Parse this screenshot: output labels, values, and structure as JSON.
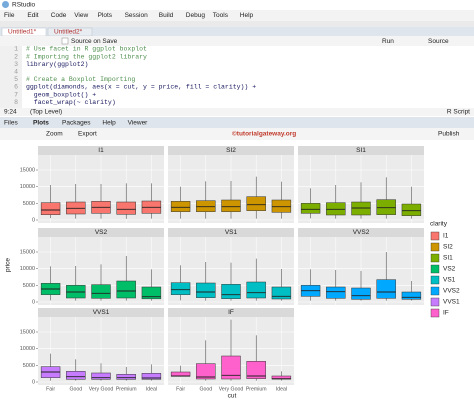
{
  "window_title": "RStudio",
  "menu": [
    "File",
    "Edit",
    "Code",
    "View",
    "Plots",
    "Session",
    "Build",
    "Debug",
    "Tools",
    "Help"
  ],
  "editor": {
    "tabs": [
      "Untitled1*",
      "Untitled2*"
    ],
    "source_on_save": "Source on Save",
    "run": "Run",
    "source": "Source",
    "line_numbers": [
      1,
      2,
      3,
      4,
      5,
      6,
      7,
      8
    ],
    "lines": [
      "# Use facet in R ggplot boxplot",
      "# Importing the ggplot2 library",
      "library(ggplot2)",
      "",
      "# Create a Boxplot Importing",
      "ggplot(diamonds, aes(x = cut, y = price, fill = clarity)) +",
      "  geom_boxplot() +",
      "  facet_wrap(~ clarity)"
    ],
    "position": "9:24",
    "scope": "(Top Level)",
    "file_type": "R Script"
  },
  "pane": {
    "tabs": [
      "Files",
      "Plots",
      "Packages",
      "Help",
      "Viewer"
    ],
    "zoom": "Zoom",
    "export": "Export",
    "publish": "Publish",
    "watermark": "©tutorialgateway.org"
  },
  "chart_data": {
    "type": "box",
    "x_label": "cut",
    "y_label": "price",
    "legend_title": "clarity",
    "categories": [
      "Fair",
      "Good",
      "Very Good",
      "Premium",
      "Ideal"
    ],
    "ylim": [
      -900,
      19500
    ],
    "yticks": [
      0,
      5000,
      10000,
      15000
    ],
    "facets": [
      {
        "name": "I1",
        "color": "#F8766D",
        "boxes": [
          [
            584,
            1600,
            3000,
            5200,
            10500
          ],
          [
            400,
            1800,
            3500,
            5400,
            10800
          ],
          [
            400,
            2000,
            3800,
            5600,
            10800
          ],
          [
            350,
            1700,
            3200,
            5400,
            11000
          ],
          [
            400,
            2000,
            3800,
            5700,
            11000
          ]
        ]
      },
      {
        "name": "SI2",
        "color": "#CD9600",
        "boxes": [
          [
            400,
            2500,
            3800,
            5600,
            10000
          ],
          [
            400,
            2500,
            4000,
            5800,
            11600
          ],
          [
            400,
            2500,
            4000,
            6000,
            11700
          ],
          [
            400,
            2800,
            4600,
            7000,
            13000
          ],
          [
            400,
            2300,
            4000,
            6000,
            11500
          ]
        ]
      },
      {
        "name": "SI1",
        "color": "#7CAE00",
        "boxes": [
          [
            500,
            2000,
            3200,
            5000,
            9500
          ],
          [
            400,
            1500,
            3200,
            5200,
            10500
          ],
          [
            400,
            1500,
            3600,
            5400,
            11300
          ],
          [
            400,
            1600,
            3700,
            6100,
            12800
          ],
          [
            400,
            1300,
            2800,
            4800,
            10000
          ]
        ]
      },
      {
        "name": "VS2",
        "color": "#00BE67",
        "boxes": [
          [
            500,
            2200,
            3900,
            5600,
            10700
          ],
          [
            400,
            1200,
            3000,
            5000,
            10800
          ],
          [
            400,
            1100,
            2600,
            5200,
            11300
          ],
          [
            400,
            1200,
            3300,
            6300,
            13800
          ],
          [
            400,
            950,
            1600,
            4500,
            9800
          ]
        ]
      },
      {
        "name": "VS1",
        "color": "#00BFC4",
        "boxes": [
          [
            500,
            2200,
            3700,
            5800,
            11000
          ],
          [
            400,
            1300,
            3000,
            5700,
            12000
          ],
          [
            400,
            1000,
            2200,
            5300,
            11800
          ],
          [
            400,
            1200,
            2800,
            6000,
            13000
          ],
          [
            400,
            900,
            1700,
            4500,
            9900
          ]
        ]
      },
      {
        "name": "VVS2",
        "color": "#00A9FF",
        "boxes": [
          [
            400,
            1700,
            3400,
            5000,
            9800
          ],
          [
            400,
            1100,
            3100,
            4500,
            9600
          ],
          [
            400,
            800,
            1900,
            4200,
            9300
          ],
          [
            400,
            1100,
            3000,
            6700,
            15000
          ],
          [
            400,
            800,
            1400,
            3000,
            6300
          ]
        ]
      },
      {
        "name": "VVS1",
        "color": "#C77CFF",
        "boxes": [
          [
            400,
            1300,
            3000,
            4600,
            8500
          ],
          [
            400,
            800,
            1600,
            3200,
            6800
          ],
          [
            400,
            800,
            1300,
            2700,
            5600
          ],
          [
            400,
            800,
            1300,
            2300,
            4500
          ],
          [
            400,
            800,
            1200,
            2600,
            5300
          ]
        ]
      },
      {
        "name": "IF",
        "color": "#FF61CC",
        "boxes": [
          [
            1600,
            1700,
            1800,
            3000,
            4900
          ],
          [
            400,
            900,
            1500,
            5500,
            12500
          ],
          [
            400,
            900,
            2000,
            7800,
            18700
          ],
          [
            400,
            1000,
            1800,
            6200,
            14000
          ],
          [
            400,
            850,
            1000,
            1800,
            3200
          ]
        ]
      }
    ]
  }
}
